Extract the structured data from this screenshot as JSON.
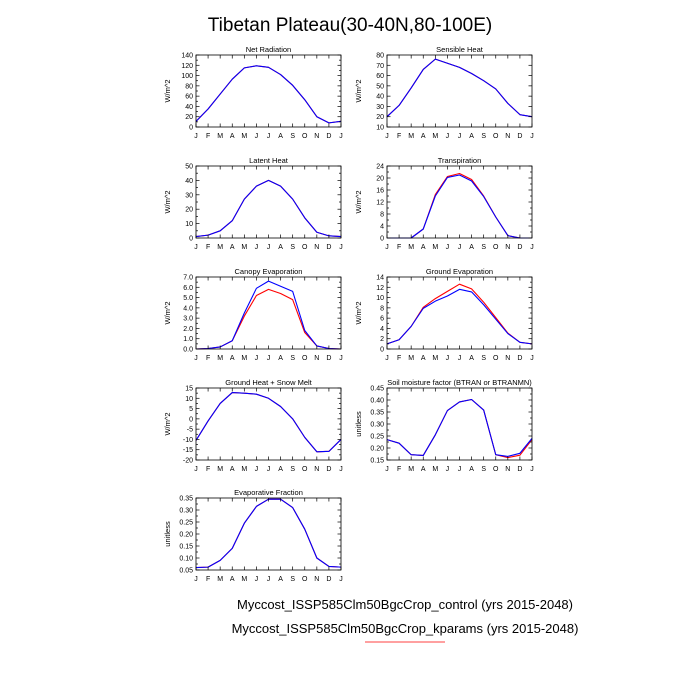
{
  "figure": {
    "title": "Tibetan Plateau(30-40N,80-100E)",
    "legend": [
      {
        "label": "Myccost_ISSP585Clm50BgcCrop_control (yrs 2015-2048)",
        "color": "#0000ff"
      },
      {
        "label": "Myccost_ISSP585Clm50BgcCrop_kparams (yrs 2015-2048)",
        "color": "#ff0000"
      }
    ]
  },
  "chart_data": [
    {
      "type": "line",
      "title": "Net Radiation",
      "ylabel": "W/m^2",
      "categories": [
        "J",
        "F",
        "M",
        "A",
        "M",
        "J",
        "J",
        "A",
        "S",
        "O",
        "N",
        "D",
        "J"
      ],
      "ylim": [
        0,
        140
      ],
      "yticks": [
        0,
        10,
        20,
        30,
        40,
        50,
        60,
        70,
        80,
        90,
        100,
        110,
        120,
        130,
        140
      ],
      "ytick_labels": [
        "0",
        "",
        "20",
        "",
        "40",
        "",
        "60",
        "",
        "80",
        "",
        "100",
        "",
        "120",
        "",
        "140"
      ],
      "series": [
        {
          "color": "#ff0000",
          "values": [
            11,
            35,
            64,
            93,
            115,
            119,
            116,
            102,
            81,
            53,
            20,
            8,
            11
          ]
        },
        {
          "color": "#0000ff",
          "values": [
            11,
            35,
            64,
            93,
            115,
            119,
            116,
            102,
            81,
            53,
            20,
            8,
            11
          ]
        }
      ]
    },
    {
      "type": "line",
      "title": "Sensible Heat",
      "ylabel": "W/m^2",
      "categories": [
        "J",
        "F",
        "M",
        "A",
        "M",
        "J",
        "J",
        "A",
        "S",
        "O",
        "N",
        "D",
        "J"
      ],
      "ylim": [
        10,
        80
      ],
      "yticks": [
        10,
        20,
        30,
        40,
        50,
        60,
        70,
        80
      ],
      "ytick_labels": [
        "10",
        "20",
        "30",
        "40",
        "50",
        "60",
        "70",
        "80"
      ],
      "series": [
        {
          "color": "#ff0000",
          "values": [
            20,
            31,
            48,
            66,
            76,
            72,
            68,
            62,
            55,
            47,
            33,
            22,
            20
          ]
        },
        {
          "color": "#0000ff",
          "values": [
            20,
            31,
            48,
            66,
            76,
            72,
            68,
            62,
            55,
            47,
            33,
            22,
            20
          ]
        }
      ]
    },
    {
      "type": "line",
      "title": "Latent Heat",
      "ylabel": "W/m^2",
      "categories": [
        "J",
        "F",
        "M",
        "A",
        "M",
        "J",
        "J",
        "A",
        "S",
        "O",
        "N",
        "D",
        "J"
      ],
      "ylim": [
        0,
        50
      ],
      "yticks": [
        0,
        5,
        10,
        15,
        20,
        25,
        30,
        35,
        40,
        45,
        50
      ],
      "ytick_labels": [
        "0",
        "",
        "10",
        "",
        "20",
        "",
        "30",
        "",
        "40",
        "",
        "50"
      ],
      "series": [
        {
          "color": "#ff0000",
          "values": [
            1,
            2,
            5,
            12,
            27,
            36,
            40,
            36,
            27,
            14,
            4,
            1.5,
            1
          ]
        },
        {
          "color": "#0000ff",
          "values": [
            1,
            2,
            5,
            12,
            27,
            36,
            40,
            36,
            27,
            14,
            4,
            1.5,
            1
          ]
        }
      ]
    },
    {
      "type": "line",
      "title": "Transpiration",
      "ylabel": "W/m^2",
      "categories": [
        "J",
        "F",
        "M",
        "A",
        "M",
        "J",
        "J",
        "A",
        "S",
        "O",
        "N",
        "D",
        "J"
      ],
      "ylim": [
        0,
        24
      ],
      "yticks": [
        0,
        2,
        4,
        6,
        8,
        10,
        12,
        14,
        16,
        18,
        20,
        22,
        24
      ],
      "ytick_labels": [
        "0",
        "",
        "4",
        "",
        "8",
        "",
        "12",
        "",
        "16",
        "",
        "20",
        "",
        "24"
      ],
      "series": [
        {
          "color": "#ff0000",
          "values": [
            0,
            0,
            0,
            3,
            14.5,
            20.5,
            21.5,
            19.5,
            14,
            7,
            0.8,
            0,
            0
          ]
        },
        {
          "color": "#0000ff",
          "values": [
            0,
            0,
            0,
            3,
            14,
            20.2,
            21,
            19,
            13.8,
            7,
            0.8,
            0,
            0
          ]
        }
      ]
    },
    {
      "type": "line",
      "title": "Canopy Evaporation",
      "ylabel": "W/m^2",
      "categories": [
        "J",
        "F",
        "M",
        "A",
        "M",
        "J",
        "J",
        "A",
        "S",
        "O",
        "N",
        "D",
        "J"
      ],
      "ylim": [
        0,
        7
      ],
      "yticks": [
        0,
        0.5,
        1,
        1.5,
        2,
        2.5,
        3,
        3.5,
        4,
        4.5,
        5,
        5.5,
        6,
        6.5,
        7
      ],
      "ytick_labels": [
        "0.0",
        "",
        "1.0",
        "",
        "2.0",
        "",
        "3.0",
        "",
        "4.0",
        "",
        "5.0",
        "",
        "6.0",
        "",
        "7.0"
      ],
      "series": [
        {
          "color": "#ff0000",
          "values": [
            0,
            0.05,
            0.2,
            0.8,
            3.2,
            5.2,
            5.8,
            5.4,
            4.8,
            1.6,
            0.3,
            0.05,
            0
          ]
        },
        {
          "color": "#0000ff",
          "values": [
            0,
            0.05,
            0.2,
            0.8,
            3.5,
            5.9,
            6.6,
            6.1,
            5.6,
            1.8,
            0.3,
            0.05,
            0
          ]
        }
      ]
    },
    {
      "type": "line",
      "title": "Ground Evaporation",
      "ylabel": "W/m^2",
      "categories": [
        "J",
        "F",
        "M",
        "A",
        "M",
        "J",
        "J",
        "A",
        "S",
        "O",
        "N",
        "D",
        "J"
      ],
      "ylim": [
        0,
        14
      ],
      "yticks": [
        0,
        1,
        2,
        3,
        4,
        5,
        6,
        7,
        8,
        9,
        10,
        11,
        12,
        13,
        14
      ],
      "ytick_labels": [
        "0",
        "",
        "2",
        "",
        "4",
        "",
        "6",
        "",
        "8",
        "",
        "10",
        "",
        "12",
        "",
        "14"
      ],
      "series": [
        {
          "color": "#ff0000",
          "values": [
            1,
            1.8,
            4.4,
            8.1,
            9.8,
            11.2,
            12.6,
            11.7,
            9.1,
            6.1,
            3.1,
            1.3,
            1
          ]
        },
        {
          "color": "#0000ff",
          "values": [
            1,
            1.8,
            4.4,
            7.9,
            9.3,
            10.3,
            11.6,
            11.1,
            8.6,
            5.8,
            3,
            1.3,
            1
          ]
        }
      ]
    },
    {
      "type": "line",
      "title": "Ground Heat + Snow Melt",
      "ylabel": "W/m^2",
      "categories": [
        "J",
        "F",
        "M",
        "A",
        "M",
        "J",
        "J",
        "A",
        "S",
        "O",
        "N",
        "D",
        "J"
      ],
      "ylim": [
        -20,
        15
      ],
      "yticks": [
        -20,
        -17.5,
        -15,
        -12.5,
        -10,
        -7.5,
        -5,
        -2.5,
        0,
        2.5,
        5,
        7.5,
        10,
        12.5,
        15
      ],
      "ytick_labels": [
        "-20",
        "",
        "-15",
        "",
        "-10",
        "",
        "-5",
        "",
        "0",
        "",
        "5",
        "",
        "10",
        "",
        "15"
      ],
      "series": [
        {
          "color": "#ff0000",
          "values": [
            -10.5,
            -1,
            7.5,
            12.8,
            12.5,
            12,
            10,
            6,
            0,
            -9,
            -16,
            -15.8,
            -10
          ]
        },
        {
          "color": "#0000ff",
          "values": [
            -10.5,
            -1,
            7.5,
            12.8,
            12.5,
            12,
            10,
            6,
            0,
            -9,
            -16,
            -15.8,
            -10
          ]
        }
      ]
    },
    {
      "type": "line",
      "title": "Soil moisture factor (BTRAN or BTRANMN)",
      "ylabel": "unitless",
      "categories": [
        "J",
        "F",
        "M",
        "A",
        "M",
        "J",
        "J",
        "A",
        "S",
        "O",
        "N",
        "D",
        "J"
      ],
      "ylim": [
        0.15,
        0.45
      ],
      "yticks": [
        0.15,
        0.175,
        0.2,
        0.225,
        0.25,
        0.275,
        0.3,
        0.325,
        0.35,
        0.375,
        0.4,
        0.425,
        0.45
      ],
      "ytick_labels": [
        "0.15",
        "",
        "0.20",
        "",
        "0.25",
        "",
        "0.30",
        "",
        "0.35",
        "",
        "0.40",
        "",
        "0.45"
      ],
      "series": [
        {
          "color": "#ff0000",
          "values": [
            0.235,
            0.22,
            0.172,
            0.169,
            0.255,
            0.356,
            0.392,
            0.402,
            0.358,
            0.172,
            0.16,
            0.17,
            0.235
          ]
        },
        {
          "color": "#0000ff",
          "values": [
            0.235,
            0.22,
            0.172,
            0.169,
            0.255,
            0.356,
            0.392,
            0.402,
            0.358,
            0.172,
            0.165,
            0.178,
            0.24
          ]
        }
      ]
    },
    {
      "type": "line",
      "title": "Evaporative Fraction",
      "ylabel": "unitless",
      "categories": [
        "J",
        "F",
        "M",
        "A",
        "M",
        "J",
        "J",
        "A",
        "S",
        "O",
        "N",
        "D",
        "J"
      ],
      "ylim": [
        0.05,
        0.35
      ],
      "yticks": [
        0.05,
        0.075,
        0.1,
        0.125,
        0.15,
        0.175,
        0.2,
        0.225,
        0.25,
        0.275,
        0.3,
        0.325,
        0.35
      ],
      "ytick_labels": [
        "0.05",
        "",
        "0.10",
        "",
        "0.15",
        "",
        "0.20",
        "",
        "0.25",
        "",
        "0.30",
        "",
        "0.35"
      ],
      "series": [
        {
          "color": "#ff0000",
          "values": [
            0.06,
            0.062,
            0.09,
            0.14,
            0.245,
            0.315,
            0.345,
            0.345,
            0.31,
            0.22,
            0.1,
            0.065,
            0.062
          ]
        },
        {
          "color": "#0000ff",
          "values": [
            0.06,
            0.062,
            0.09,
            0.14,
            0.245,
            0.315,
            0.345,
            0.345,
            0.31,
            0.22,
            0.1,
            0.065,
            0.062
          ]
        }
      ]
    }
  ]
}
